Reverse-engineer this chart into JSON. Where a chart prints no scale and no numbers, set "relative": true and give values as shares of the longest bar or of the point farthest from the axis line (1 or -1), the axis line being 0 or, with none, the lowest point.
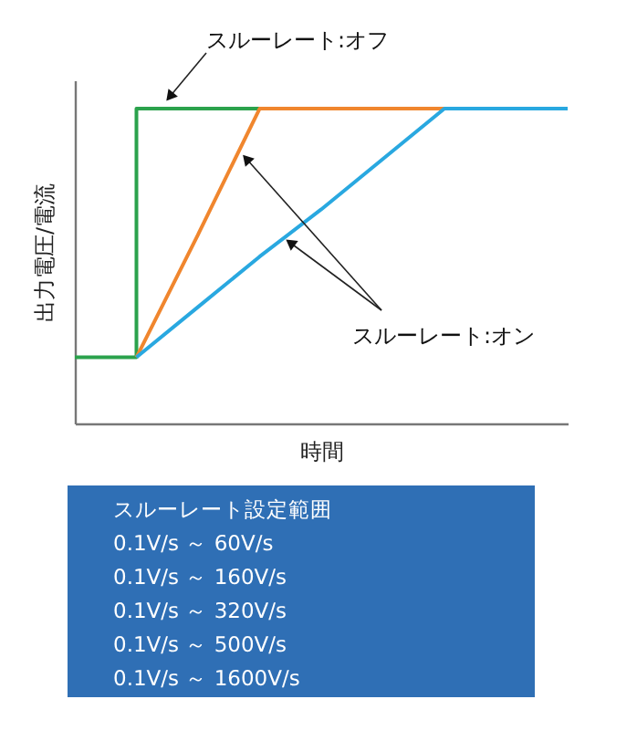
{
  "chart_data": {
    "type": "line",
    "relative": true,
    "xlabel": "時間",
    "ylabel": "出力電圧/電流",
    "categories": [
      null,
      null,
      null,
      null,
      null,
      null,
      null,
      null,
      null
    ],
    "grid": false,
    "series": [
      {
        "type": "step",
        "color": "#2ba24c",
        "values": [
          0.21,
          1,
          1,
          1,
          null,
          null,
          null,
          null,
          null
        ]
      },
      {
        "color": "#f0862e",
        "values": [
          null,
          0.21,
          0.6,
          1,
          1,
          1,
          1,
          null,
          null
        ]
      },
      {
        "color": "#29a8e0",
        "values": [
          null,
          0.21,
          0.37,
          0.53,
          0.68,
          0.84,
          1,
          1,
          1
        ]
      }
    ],
    "annotations": [
      "スルーレート:オフ",
      "スルーレート:オン",
      "スルーレート設定範囲",
      "0.1V/s ～ 60V/s",
      "0.1V/s ～ 160V/s",
      "0.1V/s ～ 320V/s",
      "0.1V/s ～ 500V/s",
      "0.1V/s ～ 1600V/s"
    ]
  }
}
